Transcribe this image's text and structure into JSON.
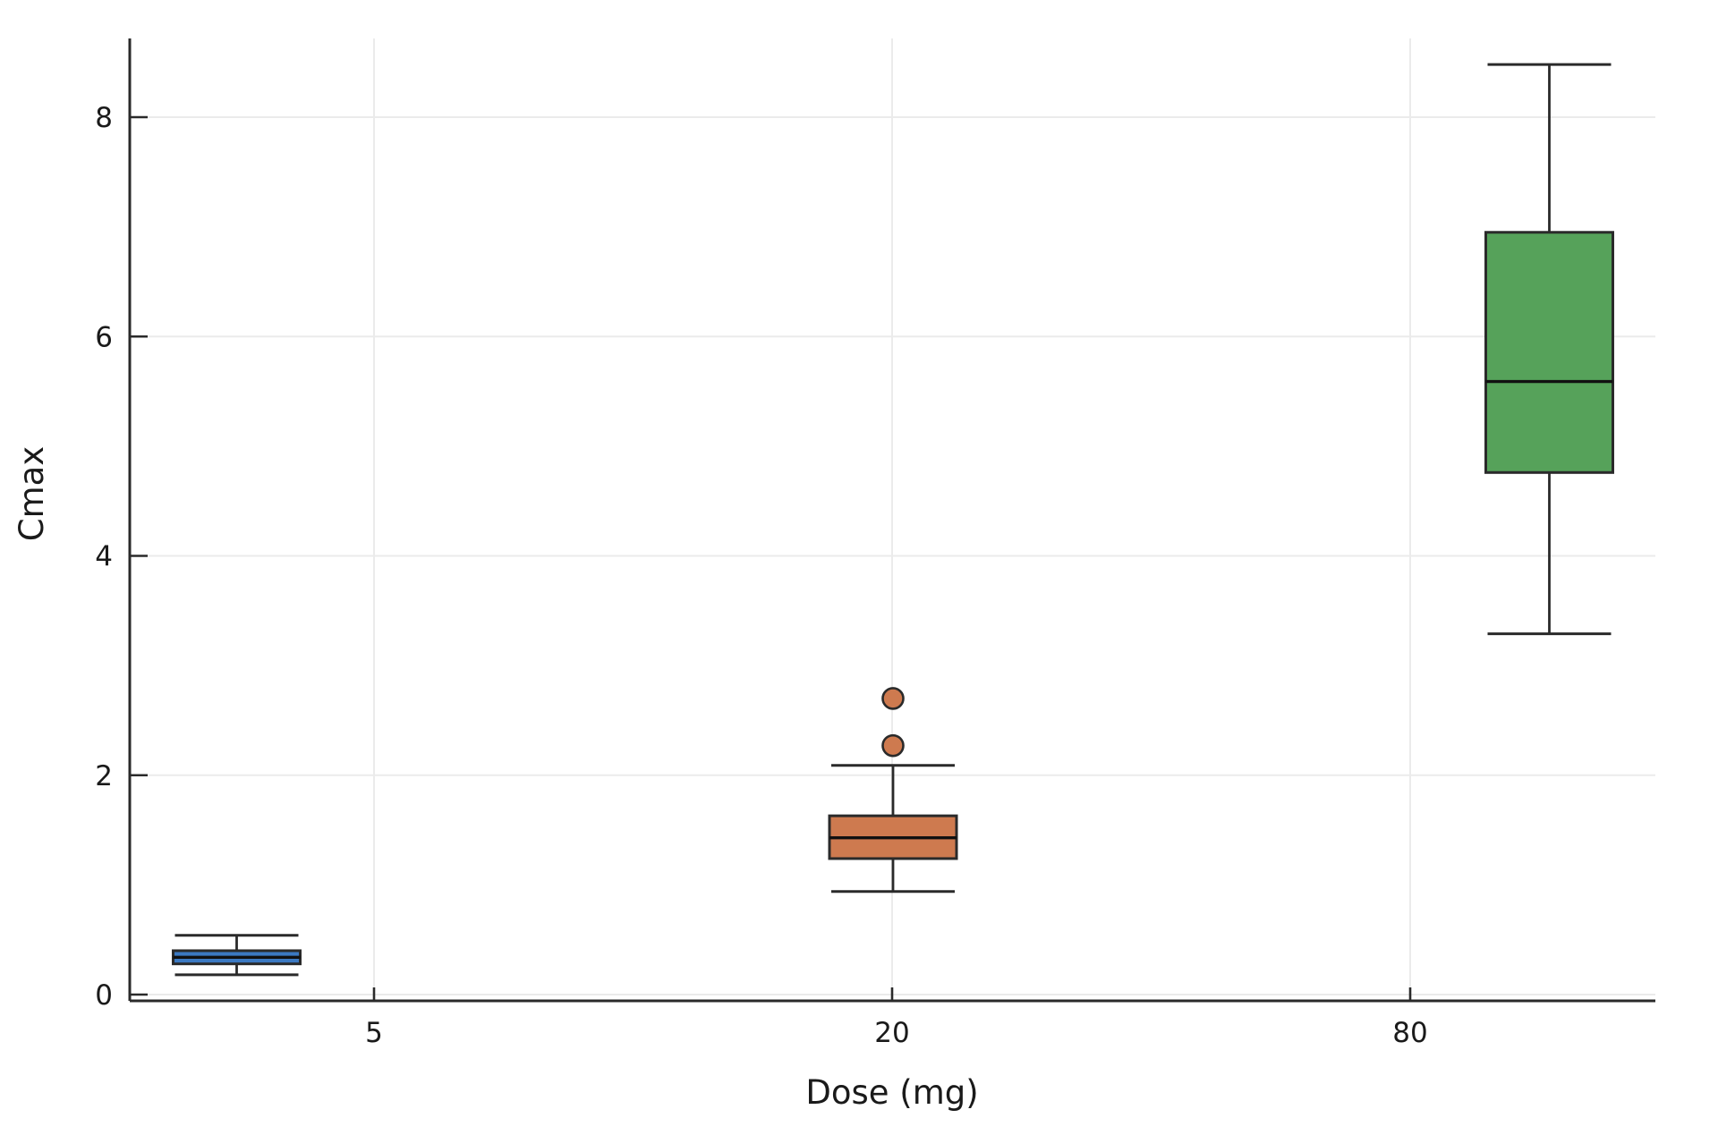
{
  "chart_data": {
    "type": "box",
    "title": "",
    "xlabel": "Dose (mg)",
    "ylabel": "Cmax",
    "x_tick_labels": [
      "5",
      "20",
      "80"
    ],
    "y_ticks": [
      0,
      2,
      4,
      6,
      8
    ],
    "ylim": [
      -0.06,
      8.72
    ],
    "grid": true,
    "legend": false,
    "groups": [
      {
        "dose": "5",
        "color": "#3B79C2",
        "whisker_low": 0.18,
        "q1": 0.28,
        "median": 0.34,
        "q3": 0.4,
        "whisker_high": 0.54,
        "outliers": []
      },
      {
        "dose": "20",
        "color": "#CE7A4F",
        "whisker_low": 0.94,
        "q1": 1.24,
        "median": 1.43,
        "q3": 1.63,
        "whisker_high": 2.09,
        "outliers": [
          2.27,
          2.7
        ]
      },
      {
        "dose": "80",
        "color": "#56A25A",
        "whisker_low": 3.29,
        "q1": 4.76,
        "median": 5.59,
        "q3": 6.95,
        "whisker_high": 8.48,
        "outliers": []
      }
    ],
    "colors": {
      "edge": "#2a2a2a",
      "grid": "#ebebeb",
      "text": "#1a1a1a",
      "background": "#ffffff"
    }
  }
}
